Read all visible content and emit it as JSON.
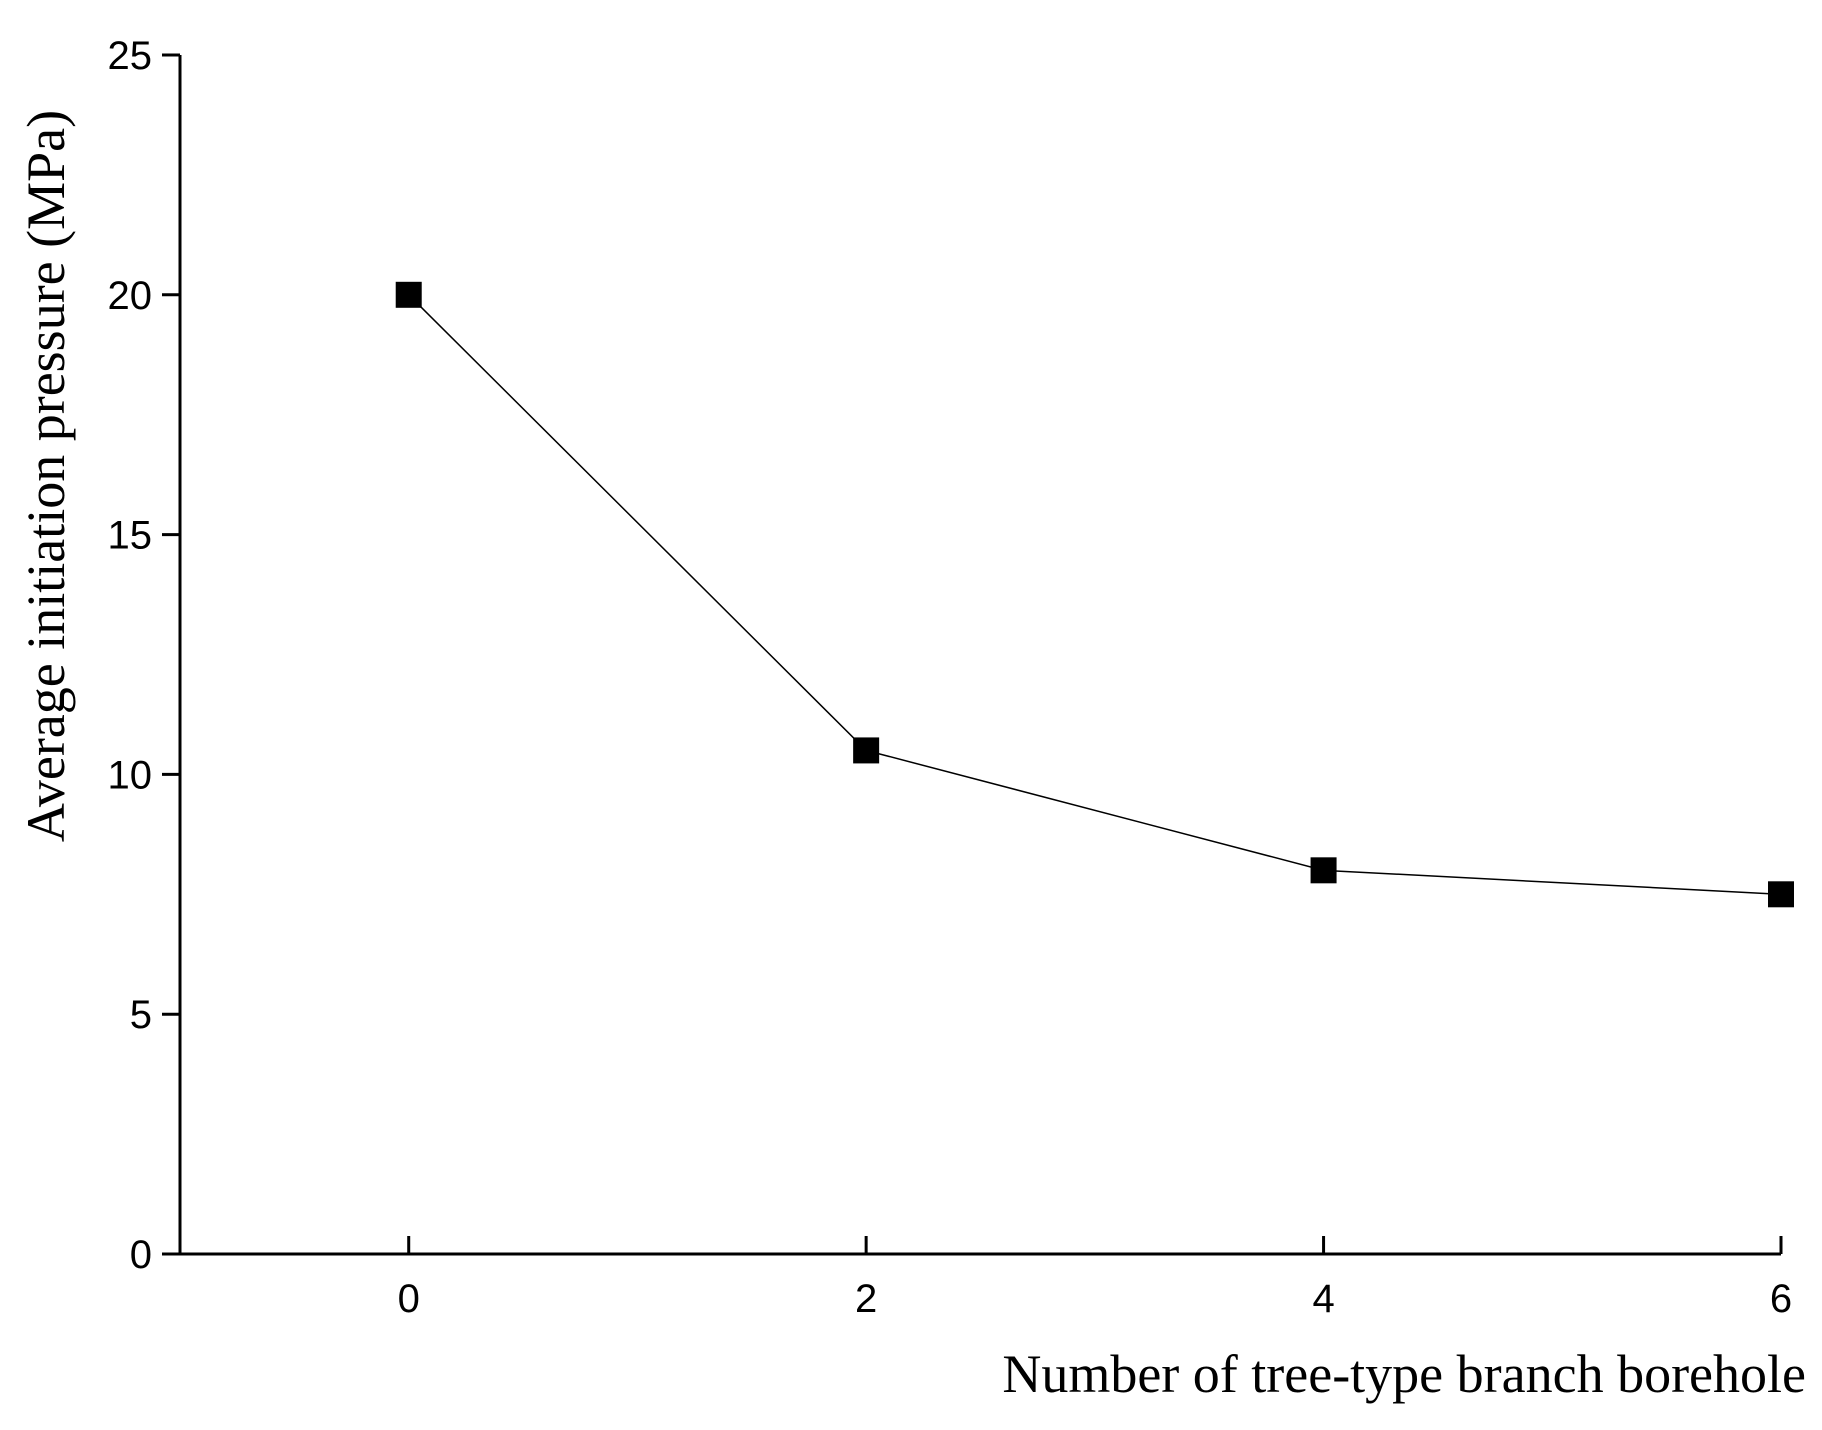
{
  "chart_data": {
    "type": "line",
    "x_label": "Number of tree-type branch borehole",
    "y_label": "Average initiation pressure (MPa)",
    "x": [
      0,
      2,
      4,
      6
    ],
    "series": [
      {
        "color": "#000000",
        "values": [
          20,
          10.5,
          8,
          7.5
        ]
      }
    ],
    "xlim": [
      -1,
      6
    ],
    "xticks": [
      0,
      2,
      4,
      6
    ],
    "ylim": [
      0,
      25
    ],
    "yticks": [
      0,
      5,
      10,
      15,
      20,
      25
    ]
  }
}
